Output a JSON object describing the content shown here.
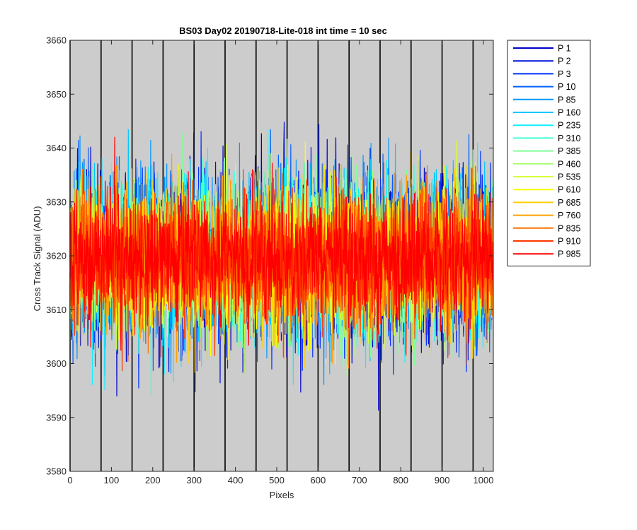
{
  "chart_data": {
    "type": "line",
    "title": "BS03 Day02 20190718-Lite-018 int time = 10 sec",
    "xlabel": "Pixels",
    "ylabel": "Cross Track Signal (ADU)",
    "xlim": [
      0,
      1024
    ],
    "ylim": [
      3580,
      3660
    ],
    "xticks": [
      0,
      100,
      200,
      300,
      400,
      500,
      600,
      700,
      800,
      900,
      1000
    ],
    "yticks": [
      3580,
      3590,
      3600,
      3610,
      3620,
      3630,
      3640,
      3650,
      3660
    ],
    "background": "#cccccc",
    "vertical_lines": [
      0,
      75,
      150,
      225,
      300,
      375,
      450,
      525,
      600,
      675,
      750,
      825,
      900,
      975
    ],
    "noise_model": {
      "mean": 3619.5,
      "std": 7.5,
      "points_per_series": 1024
    },
    "legend_location": "outside-top-right",
    "series": [
      {
        "name": "P 1",
        "color": "#0000c8"
      },
      {
        "name": "P 2",
        "color": "#0010e0"
      },
      {
        "name": "P 3",
        "color": "#0030ff"
      },
      {
        "name": "P 10",
        "color": "#0060ff"
      },
      {
        "name": "P 85",
        "color": "#0098ff"
      },
      {
        "name": "P 160",
        "color": "#00c8ff"
      },
      {
        "name": "P 235",
        "color": "#10f0ff"
      },
      {
        "name": "P 310",
        "color": "#40ffd8"
      },
      {
        "name": "P 385",
        "color": "#80ff98"
      },
      {
        "name": "P 460",
        "color": "#a8ff70"
      },
      {
        "name": "P 535",
        "color": "#d8ff38"
      },
      {
        "name": "P 610",
        "color": "#ffff00"
      },
      {
        "name": "P 685",
        "color": "#ffd000"
      },
      {
        "name": "P 760",
        "color": "#ffa000"
      },
      {
        "name": "P 835",
        "color": "#ff7000"
      },
      {
        "name": "P 910",
        "color": "#ff3800"
      },
      {
        "name": "P 985",
        "color": "#ff0000"
      }
    ]
  }
}
